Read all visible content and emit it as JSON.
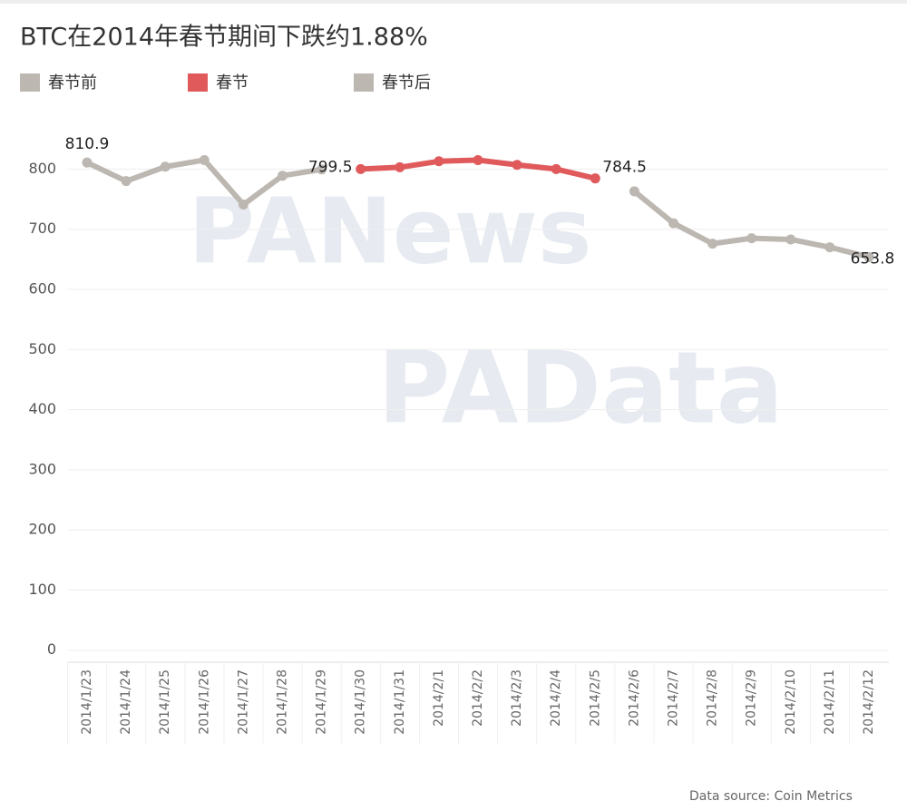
{
  "chart_data": {
    "type": "line",
    "title": "BTC在2014年春节期间下跌约1.88%",
    "categories": [
      "2014/1/23",
      "2014/1/24",
      "2014/1/25",
      "2014/1/26",
      "2014/1/27",
      "2014/1/28",
      "2014/1/29",
      "2014/1/30",
      "2014/1/31",
      "2014/2/1",
      "2014/2/2",
      "2014/2/3",
      "2014/2/4",
      "2014/2/5",
      "2014/2/6",
      "2014/2/7",
      "2014/2/8",
      "2014/2/9",
      "2014/2/10",
      "2014/2/11",
      "2014/2/12"
    ],
    "series": [
      {
        "name": "春节前",
        "color": "#bdb7b2",
        "values": [
          810.9,
          780,
          804,
          815,
          741,
          789,
          799.5,
          null,
          null,
          null,
          null,
          null,
          null,
          null,
          null,
          null,
          null,
          null,
          null,
          null,
          null
        ],
        "value_labels": [
          "810.9",
          null,
          null,
          null,
          null,
          null,
          "799.5",
          null,
          null,
          null,
          null,
          null,
          null,
          null,
          null,
          null,
          null,
          null,
          null,
          null,
          null
        ]
      },
      {
        "name": "春节",
        "color": "#e05a5c",
        "values": [
          null,
          null,
          null,
          null,
          null,
          null,
          null,
          800,
          803,
          813,
          815,
          807,
          800,
          784.5,
          null,
          null,
          null,
          null,
          null,
          null,
          null
        ],
        "value_labels": [
          null,
          null,
          null,
          null,
          null,
          null,
          null,
          null,
          null,
          null,
          null,
          null,
          null,
          "784.5",
          null,
          null,
          null,
          null,
          null,
          null,
          null
        ]
      },
      {
        "name": "春节后",
        "color": "#bdb7b2",
        "values": [
          null,
          null,
          null,
          null,
          null,
          null,
          null,
          null,
          null,
          null,
          null,
          null,
          null,
          null,
          763,
          710,
          676,
          685,
          683,
          670,
          653.8
        ],
        "value_labels": [
          null,
          null,
          null,
          null,
          null,
          null,
          null,
          null,
          null,
          null,
          null,
          null,
          null,
          null,
          null,
          null,
          null,
          null,
          null,
          null,
          "653.8"
        ]
      }
    ],
    "ylim": [
      -20,
      870
    ],
    "yticks": [
      0,
      100,
      200,
      300,
      400,
      500,
      600,
      700,
      800
    ],
    "grid": true,
    "watermarks": [
      "PANews",
      "PAData"
    ],
    "source": "Data source: Coin Metrics"
  }
}
